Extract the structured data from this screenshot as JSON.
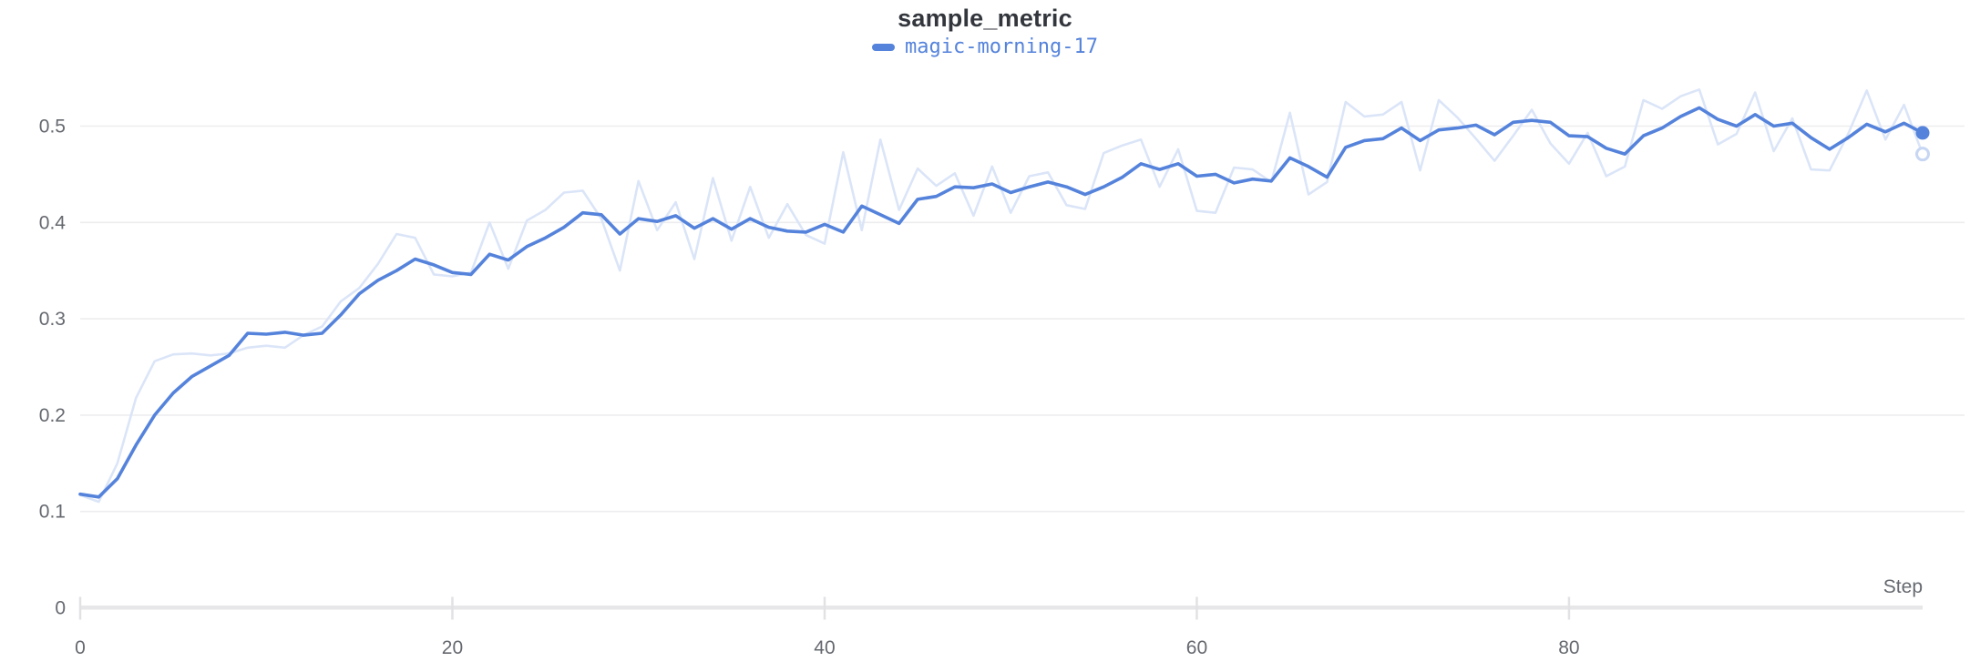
{
  "header": {
    "title": "sample_metric"
  },
  "legend": {
    "position": "top-center",
    "items": [
      {
        "label": "magic-morning-17",
        "color": "#5583db"
      }
    ]
  },
  "axis_labels": {
    "x": "Step"
  },
  "colors": {
    "background": "#ffffff",
    "title_text": "#33373d",
    "tick_text": "#65696f",
    "gridline": "#ededef",
    "axis_bar": "#e7e7e9",
    "axis_tick": "#e2e2e5",
    "run_line": "#5583db",
    "run_line_raw": "#dbe5f8",
    "raw_end_dot_ring": "#c7d6f3"
  },
  "chart_data": {
    "type": "line",
    "title": "sample_metric",
    "xlabel": "Step",
    "ylabel": "",
    "grid": "horizontal",
    "legend_position": "top-center",
    "xlim": [
      0,
      99
    ],
    "ylim": [
      0,
      0.55
    ],
    "x_start": 0,
    "x_step": 1,
    "x_ticks": [
      0,
      20,
      40,
      60,
      80
    ],
    "x_tick_labels": [
      "0",
      "20",
      "40",
      "60",
      "80"
    ],
    "y_ticks": [
      0,
      0.1,
      0.2,
      0.3,
      0.4,
      0.5
    ],
    "y_tick_labels": [
      "0",
      "0.1",
      "0.2",
      "0.3",
      "0.4",
      "0.5"
    ],
    "end_point_markers": true,
    "series": [
      {
        "name": "magic-morning-17 (original, unsmoothed)",
        "role": "raw",
        "color": "#dbe5f8",
        "line_width": 2.6,
        "values": [
          0.117,
          0.11,
          0.15,
          0.218,
          0.256,
          0.263,
          0.264,
          0.262,
          0.264,
          0.27,
          0.272,
          0.27,
          0.283,
          0.292,
          0.318,
          0.332,
          0.357,
          0.388,
          0.384,
          0.346,
          0.344,
          0.348,
          0.4,
          0.352,
          0.402,
          0.413,
          0.431,
          0.433,
          0.404,
          0.35,
          0.443,
          0.392,
          0.421,
          0.362,
          0.446,
          0.381,
          0.437,
          0.384,
          0.419,
          0.387,
          0.378,
          0.473,
          0.392,
          0.486,
          0.413,
          0.456,
          0.438,
          0.451,
          0.407,
          0.458,
          0.41,
          0.448,
          0.452,
          0.418,
          0.414,
          0.472,
          0.48,
          0.486,
          0.437,
          0.476,
          0.412,
          0.41,
          0.457,
          0.455,
          0.442,
          0.514,
          0.429,
          0.442,
          0.525,
          0.51,
          0.512,
          0.525,
          0.454,
          0.527,
          0.509,
          0.487,
          0.464,
          0.49,
          0.517,
          0.482,
          0.461,
          0.493,
          0.448,
          0.458,
          0.527,
          0.518,
          0.531,
          0.538,
          0.481,
          0.492,
          0.535,
          0.474,
          0.508,
          0.455,
          0.454,
          0.492,
          0.537,
          0.486,
          0.522,
          0.471
        ]
      },
      {
        "name": "magic-morning-17",
        "role": "smoothed",
        "color": "#5583db",
        "line_width": 3.6,
        "values": [
          0.118,
          0.115,
          0.134,
          0.169,
          0.2,
          0.223,
          0.24,
          0.251,
          0.262,
          0.285,
          0.284,
          0.286,
          0.283,
          0.285,
          0.304,
          0.326,
          0.34,
          0.35,
          0.362,
          0.356,
          0.348,
          0.346,
          0.367,
          0.361,
          0.375,
          0.384,
          0.395,
          0.41,
          0.408,
          0.388,
          0.404,
          0.401,
          0.407,
          0.394,
          0.404,
          0.393,
          0.404,
          0.395,
          0.391,
          0.39,
          0.398,
          0.39,
          0.417,
          0.408,
          0.399,
          0.424,
          0.427,
          0.437,
          0.436,
          0.44,
          0.431,
          0.437,
          0.442,
          0.437,
          0.429,
          0.437,
          0.447,
          0.461,
          0.455,
          0.461,
          0.448,
          0.45,
          0.441,
          0.445,
          0.443,
          0.467,
          0.458,
          0.447,
          0.478,
          0.485,
          0.487,
          0.498,
          0.485,
          0.496,
          0.498,
          0.501,
          0.491,
          0.504,
          0.506,
          0.504,
          0.49,
          0.489,
          0.477,
          0.471,
          0.49,
          0.498,
          0.51,
          0.519,
          0.507,
          0.5,
          0.512,
          0.5,
          0.503,
          0.488,
          0.476,
          0.488,
          0.502,
          0.494,
          0.503,
          0.493
        ]
      }
    ]
  }
}
